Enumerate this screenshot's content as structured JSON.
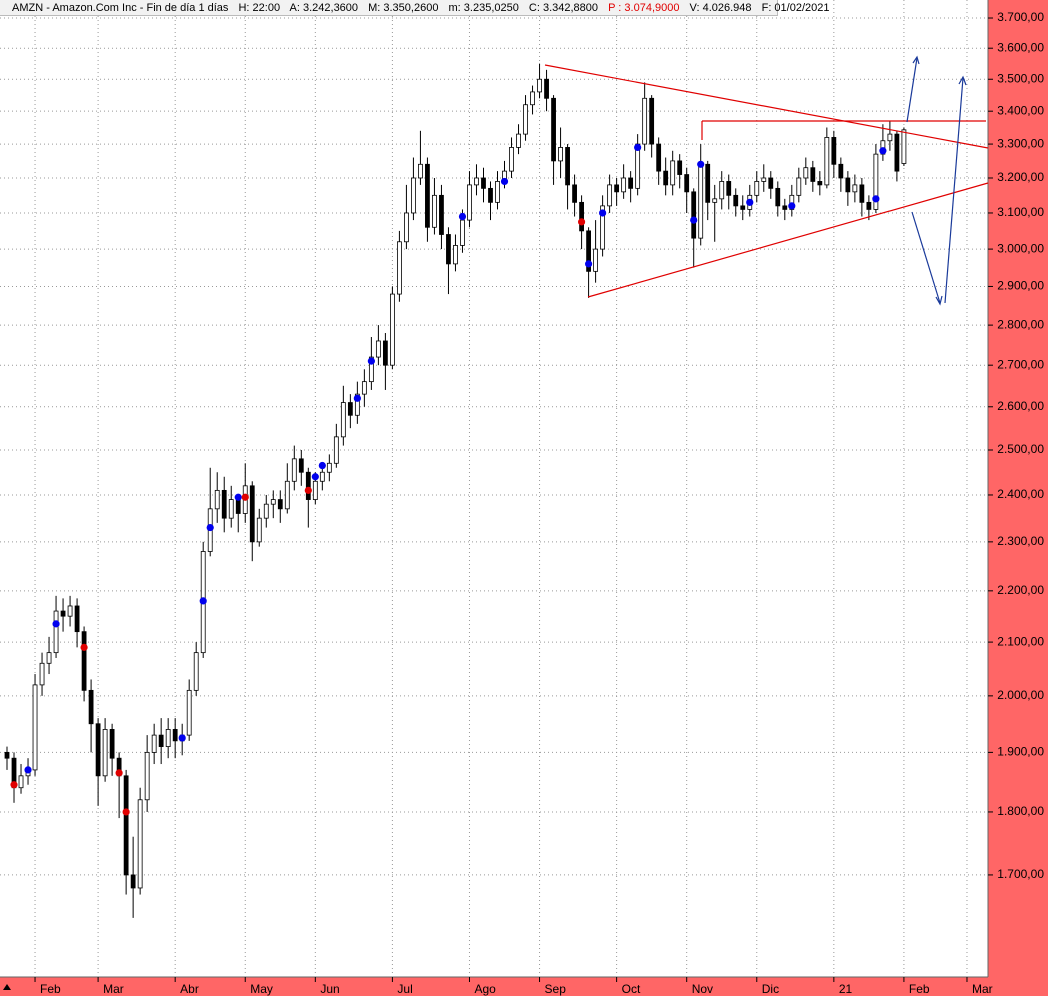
{
  "header": {
    "symbol": "AMZN - Amazon.Com Inc - Fin de día 1 días",
    "fields": [
      "H: 22:00",
      "A: 3.242,3600",
      "M: 3.350,2600",
      "m: 3.235,0250",
      "C: 3.342,8800"
    ],
    "p_field": "P : 3.074,9000",
    "tail_fields": [
      "V: 4.026.948",
      "F: 01/02/2021"
    ]
  },
  "chart_data": {
    "type": "candlestick",
    "log_scale": true,
    "grid": true,
    "up_color": "#ffffff",
    "down_color": "#000000",
    "categories": [
      null,
      null,
      null,
      null,
      "Feb",
      null,
      null,
      null,
      null,
      null,
      null,
      null,
      null,
      "Mar",
      null,
      null,
      null,
      null,
      null,
      null,
      null,
      null,
      null,
      null,
      "Abr",
      null,
      null,
      null,
      null,
      null,
      null,
      null,
      null,
      null,
      "May",
      null,
      null,
      null,
      null,
      null,
      null,
      null,
      null,
      null,
      "Jun",
      null,
      null,
      null,
      null,
      null,
      null,
      null,
      null,
      null,
      null,
      "Jul",
      null,
      null,
      null,
      null,
      null,
      null,
      null,
      null,
      null,
      null,
      "Ago",
      null,
      null,
      null,
      null,
      null,
      null,
      null,
      null,
      null,
      "Sep",
      null,
      null,
      null,
      null,
      null,
      null,
      null,
      null,
      null,
      null,
      "Oct",
      null,
      null,
      null,
      null,
      null,
      null,
      null,
      null,
      null,
      "Nov",
      null,
      null,
      null,
      null,
      null,
      null,
      null,
      null,
      null,
      "Dic",
      null,
      null,
      null,
      null,
      null,
      null,
      null,
      null,
      null,
      null,
      "21",
      null,
      null,
      null,
      null,
      null,
      null,
      null,
      null,
      null,
      "Feb",
      null,
      null,
      null,
      null,
      null,
      null,
      null,
      null,
      "Mar",
      null,
      null
    ],
    "open": [
      1900,
      1890,
      1840,
      1860,
      1870,
      2020,
      2060,
      2080,
      2160,
      2150,
      2170,
      2120,
      2010,
      1950,
      1860,
      1940,
      1890,
      1860,
      1700,
      1680,
      1820,
      1900,
      1930,
      1910,
      1940,
      1920,
      1930,
      2010,
      2080,
      2280,
      2370,
      2410,
      2350,
      2390,
      2360,
      2420,
      2300,
      2350,
      2380,
      2390,
      2370,
      2430,
      2480,
      2450,
      2390,
      2430,
      2450,
      2470,
      2530,
      2610,
      2580,
      2630,
      2660,
      2720,
      2760,
      2700,
      2880,
      3020,
      3100,
      3200,
      3240,
      3060,
      3150,
      3040,
      2960,
      3010,
      3080,
      3180,
      3200,
      3170,
      3130,
      3190,
      3220,
      3290,
      3330,
      3420,
      3460,
      3500,
      3440,
      3250,
      3290,
      3180,
      3130,
      3050,
      2940,
      3000,
      3120,
      3180,
      3160,
      3200,
      3170,
      3300,
      3440,
      3300,
      3220,
      3180,
      3250,
      3210,
      3160,
      3030,
      3240,
      3130,
      3140,
      3190,
      3150,
      3120,
      3110,
      3150,
      3190,
      3200,
      3170,
      3120,
      3110,
      3150,
      3200,
      3230,
      3190,
      3180,
      3320,
      3240,
      3200,
      3160,
      3180,
      3130,
      3110,
      3270,
      3310,
      3330,
      3242.36,
      null,
      null,
      null,
      null,
      null,
      null,
      null,
      null,
      null,
      null,
      null
    ],
    "high": [
      1910,
      1900,
      1880,
      1890,
      2040,
      2080,
      2110,
      2190,
      2185,
      2190,
      2185,
      2130,
      2030,
      1960,
      1960,
      1950,
      1900,
      1870,
      1760,
      1840,
      1930,
      1950,
      1960,
      1960,
      1960,
      1950,
      2030,
      2100,
      2300,
      2460,
      2450,
      2440,
      2420,
      2400,
      2470,
      2430,
      2370,
      2400,
      2410,
      2410,
      2470,
      2510,
      2500,
      2460,
      2450,
      2470,
      2490,
      2560,
      2650,
      2630,
      2660,
      2690,
      2770,
      2800,
      2780,
      2900,
      3050,
      3180,
      3260,
      3340,
      3260,
      3200,
      3180,
      3060,
      3040,
      3110,
      3220,
      3240,
      3230,
      3190,
      3220,
      3250,
      3320,
      3360,
      3450,
      3480,
      3550,
      3530,
      3450,
      3350,
      3300,
      3210,
      3150,
      3060,
      3080,
      3150,
      3210,
      3200,
      3240,
      3220,
      3330,
      3490,
      3450,
      3320,
      3260,
      3280,
      3270,
      3230,
      3170,
      3300,
      3250,
      3180,
      3220,
      3210,
      3170,
      3150,
      3180,
      3220,
      3240,
      3220,
      3190,
      3140,
      3180,
      3230,
      3260,
      3250,
      3220,
      3350,
      3340,
      3260,
      3220,
      3210,
      3200,
      3150,
      3300,
      3360,
      3370,
      3340,
      3350.26,
      null,
      null,
      null,
      null,
      null,
      null,
      null,
      null,
      null,
      null,
      null
    ],
    "low": [
      1870,
      1815,
      1830,
      1845,
      1860,
      2000,
      2040,
      2070,
      2120,
      2130,
      2090,
      1990,
      1900,
      1810,
      1850,
      1860,
      1790,
      1670,
      1635,
      1670,
      1800,
      1880,
      1880,
      1890,
      1890,
      1895,
      1920,
      2000,
      2070,
      2270,
      2340,
      2320,
      2330,
      2320,
      2340,
      2260,
      2290,
      2330,
      2350,
      2340,
      2360,
      2410,
      2420,
      2330,
      2380,
      2410,
      2430,
      2460,
      2510,
      2550,
      2560,
      2600,
      2640,
      2700,
      2640,
      2690,
      2860,
      3000,
      3080,
      3180,
      3020,
      3040,
      3000,
      2880,
      2940,
      2990,
      3060,
      3150,
      3130,
      3080,
      3110,
      3170,
      3200,
      3270,
      3310,
      3390,
      3440,
      3400,
      3180,
      3200,
      3110,
      3090,
      3000,
      2870,
      2910,
      2980,
      3100,
      3120,
      3140,
      3130,
      3150,
      3280,
      3260,
      3180,
      3150,
      3150,
      3170,
      3100,
      2950,
      3010,
      3080,
      3020,
      3110,
      3110,
      3090,
      3080,
      3090,
      3130,
      3160,
      3140,
      3090,
      3080,
      3090,
      3130,
      3180,
      3160,
      3150,
      3170,
      3200,
      3160,
      3120,
      3130,
      3090,
      3080,
      3100,
      3250,
      3280,
      3190,
      3235.025,
      null,
      null,
      null,
      null,
      null,
      null,
      null,
      null,
      null,
      null,
      null
    ],
    "close": [
      1890,
      1840,
      1860,
      1870,
      2020,
      2060,
      2080,
      2160,
      2150,
      2170,
      2120,
      2010,
      1950,
      1860,
      1940,
      1890,
      1860,
      1700,
      1680,
      1820,
      1900,
      1930,
      1910,
      1940,
      1920,
      1930,
      2010,
      2080,
      2280,
      2370,
      2410,
      2350,
      2390,
      2360,
      2420,
      2300,
      2350,
      2380,
      2390,
      2370,
      2430,
      2480,
      2450,
      2390,
      2430,
      2450,
      2470,
      2530,
      2610,
      2580,
      2630,
      2660,
      2720,
      2760,
      2700,
      2880,
      3020,
      3100,
      3200,
      3240,
      3060,
      3150,
      3040,
      2960,
      3010,
      3080,
      3180,
      3200,
      3170,
      3130,
      3190,
      3220,
      3290,
      3330,
      3420,
      3460,
      3500,
      3440,
      3250,
      3290,
      3180,
      3130,
      3050,
      2940,
      3000,
      3120,
      3180,
      3160,
      3200,
      3170,
      3300,
      3440,
      3300,
      3220,
      3180,
      3250,
      3210,
      3160,
      3030,
      3240,
      3130,
      3140,
      3190,
      3150,
      3120,
      3110,
      3150,
      3190,
      3200,
      3170,
      3120,
      3110,
      3150,
      3200,
      3230,
      3190,
      3180,
      3320,
      3240,
      3200,
      3160,
      3180,
      3130,
      3110,
      3270,
      3310,
      3330,
      3220,
      3342.88,
      null,
      null,
      null,
      null,
      null,
      null,
      null,
      null,
      null,
      null,
      null
    ],
    "signals": [
      {
        "color": "#0000ee",
        "values": [
          null,
          null,
          null,
          1870,
          null,
          null,
          null,
          2135,
          null,
          null,
          null,
          null,
          null,
          null,
          null,
          null,
          null,
          null,
          null,
          null,
          null,
          null,
          null,
          null,
          null,
          1925,
          null,
          null,
          2180,
          2330,
          null,
          null,
          null,
          2395,
          null,
          null,
          null,
          null,
          null,
          null,
          null,
          null,
          null,
          null,
          2440,
          2465,
          null,
          null,
          null,
          null,
          2620,
          null,
          2710,
          null,
          null,
          null,
          null,
          null,
          null,
          null,
          null,
          null,
          null,
          null,
          null,
          3090,
          null,
          null,
          null,
          null,
          null,
          3190,
          null,
          null,
          null,
          null,
          null,
          null,
          null,
          null,
          null,
          null,
          null,
          2960,
          null,
          3100,
          null,
          null,
          null,
          null,
          3290,
          null,
          null,
          null,
          null,
          null,
          null,
          null,
          3080,
          3240,
          null,
          null,
          null,
          null,
          null,
          null,
          3130,
          null,
          null,
          null,
          null,
          null,
          3120,
          null,
          null,
          null,
          null,
          null,
          null,
          null,
          null,
          null,
          null,
          null,
          3140,
          3280,
          null,
          null,
          null,
          null,
          null,
          null,
          null,
          null,
          null,
          null,
          null,
          null,
          null,
          null
        ]
      },
      {
        "color": "#e00000",
        "values": [
          null,
          1845,
          null,
          null,
          null,
          null,
          null,
          null,
          null,
          null,
          null,
          2090,
          null,
          null,
          null,
          null,
          1865,
          1800,
          null,
          null,
          null,
          null,
          null,
          null,
          null,
          null,
          null,
          null,
          null,
          null,
          null,
          null,
          null,
          null,
          2395,
          null,
          null,
          null,
          null,
          null,
          null,
          null,
          null,
          2410,
          null,
          null,
          null,
          null,
          null,
          null,
          null,
          null,
          null,
          null,
          null,
          null,
          null,
          null,
          null,
          null,
          null,
          null,
          null,
          null,
          null,
          null,
          null,
          null,
          null,
          null,
          null,
          null,
          null,
          null,
          null,
          null,
          null,
          null,
          null,
          null,
          null,
          null,
          3075,
          null,
          null,
          null,
          null,
          null,
          null,
          null,
          null,
          null,
          null,
          null,
          null,
          null,
          null,
          null,
          null,
          null,
          null,
          null,
          null,
          null,
          null,
          null,
          null,
          null,
          null,
          null,
          null,
          null,
          null,
          null,
          null,
          null,
          null,
          null,
          null,
          null,
          null,
          null,
          null,
          null,
          null,
          null,
          null,
          null,
          null,
          null,
          null,
          null,
          null,
          null,
          null,
          null,
          null,
          null,
          null,
          null
        ]
      }
    ],
    "ylim": [
      1551,
      3761
    ],
    "yticks": [
      {
        "value": 1700,
        "label": "1.700,00"
      },
      {
        "value": 1800,
        "label": "1.800,00"
      },
      {
        "value": 1900,
        "label": "1.900,00"
      },
      {
        "value": 2000,
        "label": "2.000,00"
      },
      {
        "value": 2100,
        "label": "2.100,00"
      },
      {
        "value": 2200,
        "label": "2.200,00"
      },
      {
        "value": 2300,
        "label": "2.300,00"
      },
      {
        "value": 2400,
        "label": "2.400,00"
      },
      {
        "value": 2500,
        "label": "2.500,00"
      },
      {
        "value": 2600,
        "label": "2.600,00"
      },
      {
        "value": 2700,
        "label": "2.700,00"
      },
      {
        "value": 2800,
        "label": "2.800,00"
      },
      {
        "value": 2900,
        "label": "2.900,00"
      },
      {
        "value": 3000,
        "label": "3.000,00"
      },
      {
        "value": 3100,
        "label": "3.100,00"
      },
      {
        "value": 3200,
        "label": "3.200,00"
      },
      {
        "value": 3300,
        "label": "3.300,00"
      },
      {
        "value": 3400,
        "label": "3.400,00"
      },
      {
        "value": 3500,
        "label": "3.500,00"
      },
      {
        "value": 3600,
        "label": "3.600,00"
      },
      {
        "value": 3700,
        "label": "3.700,00"
      }
    ]
  }
}
